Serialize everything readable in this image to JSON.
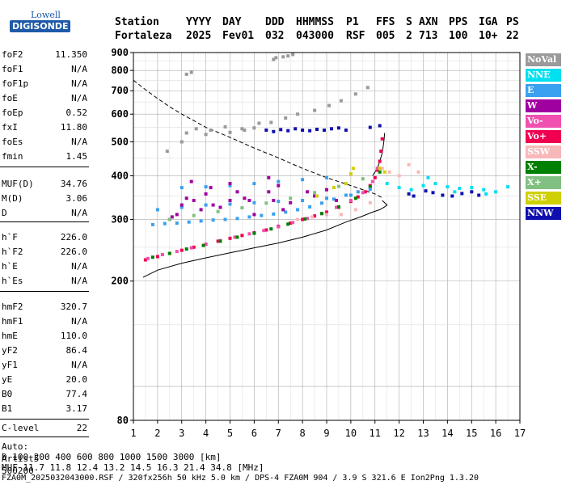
{
  "logo": {
    "line1": "Lowell",
    "line2": "DIGISONDE"
  },
  "header": {
    "labels": [
      "Station",
      "YYYY",
      "DAY",
      "DDD",
      "HHMMSS",
      "P1",
      "FFS",
      "S",
      "AXN",
      "PPS",
      "IGA",
      "PS"
    ],
    "values": [
      "Fortaleza",
      "2025",
      "Fev01",
      "032",
      "043000",
      "RSF",
      "005",
      "2",
      "713",
      "100",
      "10+",
      "22"
    ]
  },
  "params": [
    {
      "k": "foF2",
      "v": "11.350"
    },
    {
      "k": "foF1",
      "v": "N/A"
    },
    {
      "k": "foF1p",
      "v": "N/A"
    },
    {
      "k": "foE",
      "v": "N/A"
    },
    {
      "k": "foEp",
      "v": "0.52"
    },
    {
      "k": "fxI",
      "v": "11.80"
    },
    {
      "k": "foEs",
      "v": "N/A"
    },
    {
      "k": "fmin",
      "v": "1.45"
    },
    {
      "k": "MUF(D)",
      "v": "34.76"
    },
    {
      "k": "M(D)",
      "v": "3.06"
    },
    {
      "k": "D",
      "v": "N/A"
    },
    {
      "k": "h`F",
      "v": "226.0"
    },
    {
      "k": "h`F2",
      "v": "226.0"
    },
    {
      "k": "h`E",
      "v": "N/A"
    },
    {
      "k": "h`Es",
      "v": "N/A"
    },
    {
      "k": "hmF2",
      "v": "320.7"
    },
    {
      "k": "hmF1",
      "v": "N/A"
    },
    {
      "k": "hmE",
      "v": "110.0"
    },
    {
      "k": "yF2",
      "v": "86.4"
    },
    {
      "k": "yF1",
      "v": "N/A"
    },
    {
      "k": "yE",
      "v": "20.0"
    },
    {
      "k": "B0",
      "v": "77.4"
    },
    {
      "k": "B1",
      "v": "3.17"
    },
    {
      "k": "C-level",
      "v": "22"
    }
  ],
  "misc": {
    "auto": "Auto:",
    "artist": "Artist5",
    "code": "500200"
  },
  "legend": [
    {
      "label": "NoVal",
      "color": "#9a9a9a"
    },
    {
      "label": "NNE",
      "color": "#00e0f0"
    },
    {
      "label": "E",
      "color": "#3aa0f0"
    },
    {
      "label": "W",
      "color": "#a000a0"
    },
    {
      "label": "Vo-",
      "color": "#f050b0"
    },
    {
      "label": "Vo+",
      "color": "#f00050"
    },
    {
      "label": "SSW",
      "color": "#f8b8b8"
    },
    {
      "label": "X-",
      "color": "#008000"
    },
    {
      "label": "X+",
      "color": "#80c080"
    },
    {
      "label": "SSE",
      "color": "#d0d000"
    },
    {
      "label": "NNW",
      "color": "#1010b0"
    }
  ],
  "footer": {
    "line1": "D     100  200  400  600  800 1000 1500 3000 [km]",
    "line2": "MUF  11.7 11.8 12.4 13.2 14.5 16.3 21.4 34.8 [MHz]",
    "line3": "FZA0M_2025032043000.RSF / 320fx256h 50 kHz 5.0 km / DPS-4 FZA0M 904 / 3.9 S 321.6 E   Ion2Png 1.3.20"
  },
  "chart_data": {
    "type": "scatter",
    "xlim": [
      1,
      17
    ],
    "ylim": [
      80,
      900
    ],
    "y_scale": "log",
    "xticks": [
      1,
      2,
      3,
      4,
      5,
      6,
      7,
      8,
      9,
      10,
      11,
      12,
      13,
      14,
      15,
      16,
      17
    ],
    "yticks": [
      80,
      200,
      300,
      400,
      500,
      600,
      700,
      800,
      900
    ],
    "grid": true,
    "legend_position": "right",
    "series": [
      {
        "name": "Vo+",
        "color": "#f00050",
        "x": [
          1.5,
          2.0,
          2.5,
          3.0,
          3.5,
          4.0,
          4.5,
          5.0,
          5.5,
          6.0,
          6.5,
          7.0,
          7.5,
          8.0,
          8.5,
          9.0,
          9.5,
          10.0,
          10.3,
          10.6,
          10.8,
          11.0,
          11.1,
          11.2,
          11.25,
          11.3
        ],
        "y": [
          230,
          235,
          240,
          245,
          250,
          255,
          260,
          265,
          270,
          275,
          280,
          287,
          293,
          300,
          307,
          315,
          325,
          338,
          348,
          360,
          375,
          395,
          415,
          440,
          470,
          510
        ]
      },
      {
        "name": "Vo-",
        "color": "#f050b0",
        "x": [
          1.6,
          2.2,
          2.8,
          3.4,
          4.0,
          4.6,
          5.2,
          5.8,
          6.4,
          7.0,
          7.6,
          8.2,
          8.8,
          9.4,
          10.0,
          10.5,
          10.9,
          11.1
        ],
        "y": [
          232,
          238,
          243,
          249,
          255,
          261,
          267,
          273,
          279,
          286,
          294,
          302,
          312,
          325,
          340,
          358,
          385,
          420
        ]
      },
      {
        "name": "X-",
        "color": "#008000",
        "x": [
          1.8,
          2.5,
          3.2,
          3.9,
          4.6,
          5.3,
          6.0,
          6.7,
          7.4,
          8.1,
          8.8,
          9.5,
          10.2,
          10.8,
          11.2
        ],
        "y": [
          234,
          240,
          247,
          253,
          260,
          267,
          274,
          282,
          291,
          301,
          312,
          326,
          345,
          372,
          410
        ]
      },
      {
        "name": "E",
        "color": "#3aa0f0",
        "x": [
          1.8,
          2.3,
          2.8,
          3.3,
          3.8,
          4.3,
          4.8,
          5.3,
          5.8,
          6.3,
          6.8,
          7.3,
          7.8,
          8.3,
          8.8,
          9.3,
          9.8,
          10.3,
          10.8,
          2.0,
          3.0,
          4.0,
          5.0,
          6.0,
          7.0,
          8.0,
          9.0,
          10.0,
          3.0,
          4.0,
          5.0,
          6.0,
          7.0,
          8.0,
          9.0
        ],
        "y": [
          290,
          292,
          293,
          295,
          297,
          299,
          300,
          302,
          305,
          308,
          311,
          315,
          320,
          326,
          334,
          343,
          352,
          360,
          366,
          320,
          325,
          330,
          332,
          335,
          338,
          340,
          345,
          352,
          370,
          372,
          375,
          380,
          385,
          390,
          395
        ]
      },
      {
        "name": "W",
        "color": "#a000a0",
        "x": [
          2.5,
          2.8,
          3.0,
          3.2,
          3.5,
          3.8,
          4.0,
          4.3,
          4.6,
          5.0,
          5.3,
          5.6,
          6.0,
          6.6,
          6.8,
          7.0,
          7.2,
          8.5,
          9.0,
          2.6,
          3.4,
          4.2,
          5.0,
          5.8,
          6.6,
          7.5,
          8.2,
          9.4
        ],
        "y": [
          300,
          310,
          330,
          345,
          340,
          320,
          355,
          330,
          325,
          340,
          360,
          345,
          310,
          360,
          340,
          375,
          320,
          350,
          365,
          305,
          385,
          370,
          380,
          340,
          395,
          335,
          360,
          340
        ]
      },
      {
        "name": "NNE",
        "color": "#00e0f0",
        "x": [
          11.5,
          12.0,
          12.5,
          13.0,
          13.5,
          14.0,
          14.5,
          15.0,
          15.5,
          16.0,
          16.5,
          13.2,
          14.3,
          15.6
        ],
        "y": [
          380,
          370,
          365,
          375,
          380,
          372,
          368,
          370,
          365,
          360,
          372,
          395,
          360,
          355
        ]
      },
      {
        "name": "NNW",
        "color": "#1010b0",
        "x": [
          6.5,
          6.8,
          7.1,
          7.4,
          7.7,
          8.0,
          8.3,
          8.6,
          8.9,
          9.2,
          9.5,
          9.8,
          10.8,
          11.2,
          12.4,
          12.6,
          13.1,
          13.4,
          13.8,
          14.2,
          14.6,
          15.0,
          15.3
        ],
        "y": [
          540,
          535,
          542,
          538,
          545,
          540,
          538,
          543,
          540,
          545,
          548,
          540,
          550,
          556,
          355,
          350,
          362,
          358,
          352,
          350,
          356,
          360,
          352
        ]
      },
      {
        "name": "SSW",
        "color": "#f8b8b8",
        "x": [
          7.8,
          8.4,
          9.0,
          9.6,
          10.2,
          10.8,
          11.3,
          11.6,
          12.0,
          12.4,
          12.8
        ],
        "y": [
          300,
          305,
          310,
          310,
          320,
          335,
          420,
          410,
          400,
          430,
          410
        ]
      },
      {
        "name": "SSE",
        "color": "#d0d000",
        "x": [
          9.8,
          10.0,
          10.1,
          11.2,
          11.4,
          8.6,
          9.3
        ],
        "y": [
          380,
          405,
          420,
          420,
          410,
          350,
          370
        ]
      },
      {
        "name": "X+",
        "color": "#80c080",
        "x": [
          2.5,
          3.5,
          4.5,
          5.5,
          6.5,
          7.5,
          8.5,
          9.5,
          10.5
        ],
        "y": [
          300,
          308,
          316,
          324,
          334,
          345,
          358,
          373,
          392
        ]
      },
      {
        "name": "NoVal",
        "color": "#9a9a9a",
        "x": [
          3.2,
          3.6,
          4.2,
          4.8,
          5.5,
          6.2,
          6.7,
          7.3,
          7.8,
          8.5,
          9.1,
          9.6,
          10.2,
          10.7,
          6.9,
          7.2,
          7.4,
          7.6,
          6.8,
          3.2,
          3.4,
          2.4,
          3.0,
          4.0,
          5.0,
          5.6,
          6.0
        ],
        "y": [
          530,
          545,
          540,
          552,
          545,
          565,
          568,
          585,
          600,
          615,
          635,
          655,
          685,
          715,
          870,
          875,
          880,
          888,
          860,
          780,
          790,
          470,
          500,
          525,
          532,
          540,
          548
        ]
      }
    ],
    "curves": [
      {
        "name": "profile",
        "style": "solid",
        "x": [
          1.4,
          2.0,
          3.0,
          4.0,
          5.0,
          6.0,
          7.0,
          8.0,
          9.0,
          9.8,
          10.4,
          10.9,
          11.2,
          11.4,
          11.5,
          11.4,
          11.3
        ],
        "y": [
          205,
          215,
          225,
          233,
          241,
          249,
          257,
          267,
          280,
          295,
          305,
          315,
          320,
          326,
          330,
          335,
          340
        ]
      },
      {
        "name": "trace",
        "style": "solid",
        "x": [
          10.9,
          11.1,
          11.2,
          11.3,
          11.35,
          11.38,
          11.4
        ],
        "y": [
          400,
          420,
          440,
          465,
          490,
          510,
          530
        ]
      },
      {
        "name": "MUF",
        "style": "dashed",
        "x": [
          1.0,
          1.5,
          2.0,
          2.5,
          3.0,
          3.5,
          4.0,
          5.0,
          6.0,
          7.0,
          8.0,
          9.0,
          10.0,
          11.0,
          11.35
        ],
        "y": [
          750,
          705,
          665,
          630,
          600,
          575,
          550,
          515,
          480,
          450,
          420,
          395,
          375,
          355,
          345
        ]
      }
    ]
  }
}
